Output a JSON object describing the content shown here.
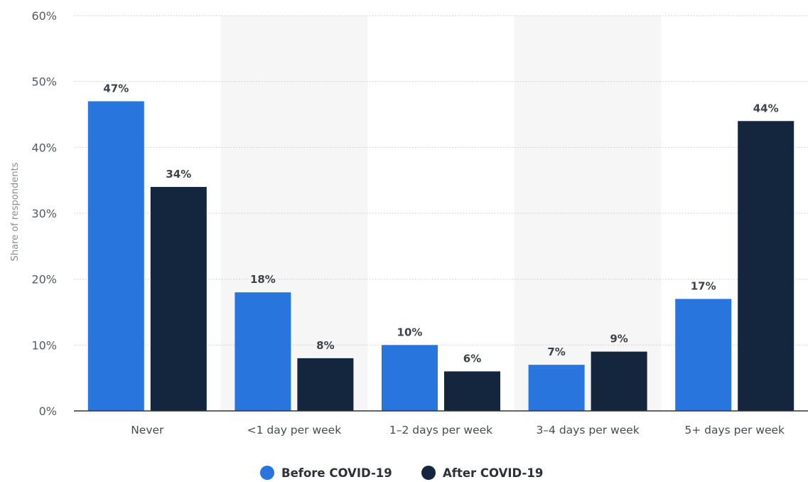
{
  "chart_data": {
    "type": "bar",
    "title": "",
    "xlabel": "",
    "ylabel": "Share of respondents",
    "ylim": [
      0,
      60
    ],
    "y_ticks": [
      0,
      10,
      20,
      30,
      40,
      50,
      60
    ],
    "y_tick_format": "{v}%",
    "grid": true,
    "legend_position": "bottom",
    "categories": [
      "Never",
      "<1 day per week",
      "1–2 days per week",
      "3–4 days per week",
      "5+ days per week"
    ],
    "series": [
      {
        "name": "Before COVID-19",
        "color": "#2876dd",
        "values": [
          47,
          18,
          10,
          7,
          17
        ]
      },
      {
        "name": "After COVID-19",
        "color": "#14263e",
        "values": [
          34,
          8,
          6,
          9,
          44
        ]
      }
    ],
    "data_labels": [
      [
        "47%",
        "18%",
        "10%",
        "7%",
        "17%"
      ],
      [
        "34%",
        "8%",
        "6%",
        "9%",
        "44%"
      ]
    ]
  },
  "colors": {
    "band": "#f6f6f6",
    "grid": "#c7c9cc",
    "axis": "#303336"
  }
}
